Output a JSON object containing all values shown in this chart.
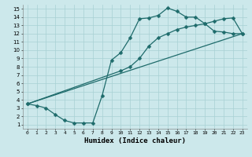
{
  "title": "",
  "xlabel": "Humidex (Indice chaleur)",
  "bg_color": "#cce8eb",
  "grid_color": "#a8d0d4",
  "line_color": "#1e6b6b",
  "xlim": [
    -0.5,
    23.5
  ],
  "ylim": [
    0.5,
    15.5
  ],
  "xticks": [
    0,
    1,
    2,
    3,
    4,
    5,
    6,
    7,
    8,
    9,
    10,
    11,
    12,
    13,
    14,
    15,
    16,
    17,
    18,
    19,
    20,
    21,
    22,
    23
  ],
  "yticks": [
    1,
    2,
    3,
    4,
    5,
    6,
    7,
    8,
    9,
    10,
    11,
    12,
    13,
    14,
    15
  ],
  "line1_x": [
    0,
    1,
    2,
    3,
    4,
    5,
    6,
    7,
    8,
    9,
    10,
    11,
    12,
    13,
    14,
    15,
    16,
    17,
    18,
    19,
    20,
    21,
    22,
    23
  ],
  "line1_y": [
    3.5,
    3.3,
    3.0,
    2.2,
    1.5,
    1.2,
    1.2,
    1.2,
    4.5,
    8.8,
    9.7,
    11.5,
    13.8,
    13.9,
    14.2,
    15.1,
    14.7,
    14.0,
    14.0,
    13.2,
    12.3,
    12.2,
    12.0,
    12.0
  ],
  "line2_x": [
    0,
    10,
    11,
    12,
    13,
    14,
    15,
    16,
    17,
    18,
    19,
    20,
    21,
    22,
    23
  ],
  "line2_y": [
    3.5,
    7.5,
    8.0,
    9.0,
    10.5,
    11.5,
    12.0,
    12.5,
    12.8,
    13.0,
    13.2,
    13.5,
    13.8,
    13.9,
    12.0
  ],
  "line3_x": [
    0,
    23
  ],
  "line3_y": [
    3.5,
    12.0
  ],
  "markersize": 2.5,
  "linewidth": 0.9
}
